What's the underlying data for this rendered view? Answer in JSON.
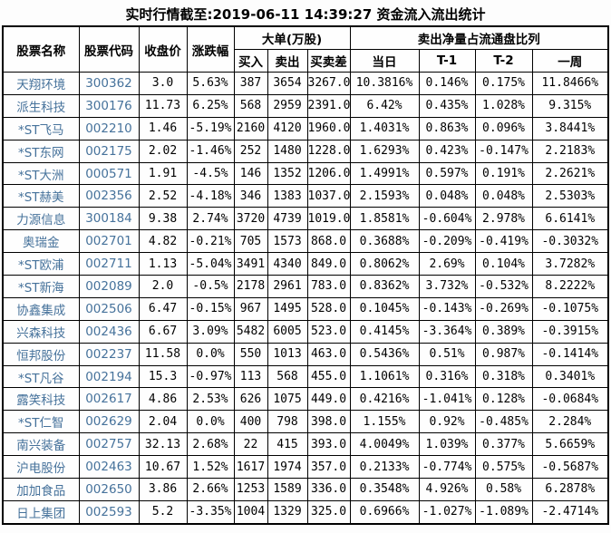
{
  "title": "实时行情截至:2019-06-11 14:39:27 资金流入流出统计",
  "colors": {
    "link_blue": "#46729b",
    "grid_line": "#000000",
    "background": "#fdfdfd",
    "text": "#000000"
  },
  "table": {
    "headers": {
      "stock_name": "股票名称",
      "stock_code": "股票代码",
      "close_price": "收盘价",
      "change_pct": "涨跌幅",
      "large_order_group": "大单(万股)",
      "buy": "买入",
      "sell": "卖出",
      "buy_sell_diff": "买卖差",
      "net_sell_group": "卖出净量占流通盘比列",
      "today": "当日",
      "t_minus_1": "T-1",
      "t_minus_2": "T-2",
      "one_week": "一周"
    },
    "rows": [
      [
        "天翔环境",
        "300362",
        "3.0",
        "5.63%",
        "387",
        "3654",
        "3267.0",
        "10.3816%",
        "0.146%",
        "0.175%",
        "11.8466%"
      ],
      [
        "派生科技",
        "300176",
        "11.73",
        "6.25%",
        "568",
        "2959",
        "2391.0",
        "6.42%",
        "0.435%",
        "1.028%",
        "9.315%"
      ],
      [
        "*ST飞马",
        "002210",
        "1.46",
        "-5.19%",
        "2160",
        "4120",
        "1960.0",
        "1.4031%",
        "0.863%",
        "0.096%",
        "3.8441%"
      ],
      [
        "*ST东网",
        "002175",
        "2.02",
        "-1.46%",
        "252",
        "1480",
        "1228.0",
        "1.6293%",
        "0.423%",
        "-0.147%",
        "2.2183%"
      ],
      [
        "*ST大洲",
        "000571",
        "1.91",
        "-4.5%",
        "146",
        "1352",
        "1206.0",
        "1.4991%",
        "0.597%",
        "0.191%",
        "2.2621%"
      ],
      [
        "*ST赫美",
        "002356",
        "2.52",
        "-4.18%",
        "346",
        "1383",
        "1037.0",
        "2.1593%",
        "0.048%",
        "0.048%",
        "2.5303%"
      ],
      [
        "力源信息",
        "300184",
        "9.38",
        "2.74%",
        "3720",
        "4739",
        "1019.0",
        "1.8581%",
        "-0.604%",
        "2.978%",
        "6.6141%"
      ],
      [
        "奥瑞金",
        "002701",
        "4.82",
        "-0.21%",
        "705",
        "1573",
        "868.0",
        "0.3688%",
        "-0.209%",
        "-0.419%",
        "-0.3032%"
      ],
      [
        "*ST欧浦",
        "002711",
        "1.13",
        "-5.04%",
        "3491",
        "4340",
        "849.0",
        "0.8062%",
        "2.69%",
        "0.104%",
        "3.7282%"
      ],
      [
        "*ST新海",
        "002089",
        "2.0",
        "-0.5%",
        "2178",
        "2961",
        "783.0",
        "0.8362%",
        "3.732%",
        "-0.532%",
        "8.2222%"
      ],
      [
        "协鑫集成",
        "002506",
        "6.47",
        "-0.15%",
        "967",
        "1495",
        "528.0",
        "0.1045%",
        "-0.143%",
        "-0.269%",
        "-0.1075%"
      ],
      [
        "兴森科技",
        "002436",
        "6.67",
        "3.09%",
        "5482",
        "6005",
        "523.0",
        "0.4145%",
        "-3.364%",
        "0.389%",
        "-0.3915%"
      ],
      [
        "恒邦股份",
        "002237",
        "11.58",
        "0.0%",
        "550",
        "1013",
        "463.0",
        "0.5436%",
        "0.51%",
        "0.987%",
        "-0.1414%"
      ],
      [
        "*ST凡谷",
        "002194",
        "15.3",
        "-0.97%",
        "113",
        "568",
        "455.0",
        "1.1061%",
        "0.316%",
        "0.318%",
        "0.3401%"
      ],
      [
        "露笑科技",
        "002617",
        "4.86",
        "2.53%",
        "626",
        "1075",
        "449.0",
        "0.4216%",
        "-1.041%",
        "0.128%",
        "-0.0684%"
      ],
      [
        "*ST仁智",
        "002629",
        "2.04",
        "0.0%",
        "400",
        "798",
        "398.0",
        "1.155%",
        "0.92%",
        "-0.485%",
        "2.284%"
      ],
      [
        "南兴装备",
        "002757",
        "32.13",
        "2.68%",
        "22",
        "415",
        "393.0",
        "4.0049%",
        "1.039%",
        "0.377%",
        "5.6659%"
      ],
      [
        "沪电股份",
        "002463",
        "10.67",
        "1.52%",
        "1617",
        "1974",
        "357.0",
        "0.2133%",
        "-0.774%",
        "0.575%",
        "-0.5687%"
      ],
      [
        "加加食品",
        "002650",
        "3.86",
        "2.66%",
        "1253",
        "1589",
        "336.0",
        "0.3548%",
        "4.926%",
        "0.58%",
        "6.2878%"
      ],
      [
        "日上集团",
        "002593",
        "5.2",
        "-3.35%",
        "1004",
        "1329",
        "325.0",
        "0.6966%",
        "-1.027%",
        "-1.089%",
        "-2.4714%"
      ]
    ]
  }
}
